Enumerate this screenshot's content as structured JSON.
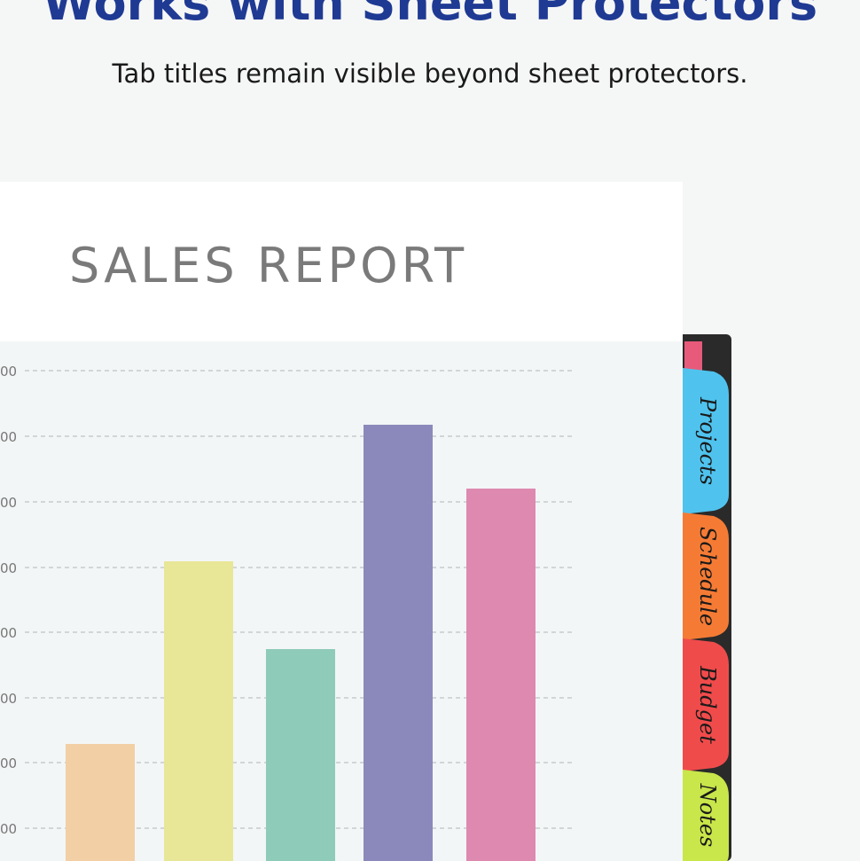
{
  "header": {
    "title": "Works with Sheet Protectors",
    "subtitle": "Tab titles remain visible beyond sheet protectors."
  },
  "report": {
    "title": "SALES REPORT",
    "axis_labels": [
      "00",
      "00",
      "00",
      "00",
      "00",
      "00",
      "00",
      "00"
    ]
  },
  "tabs": [
    "Projects",
    "Schedule",
    "Budget",
    "Notes"
  ]
}
